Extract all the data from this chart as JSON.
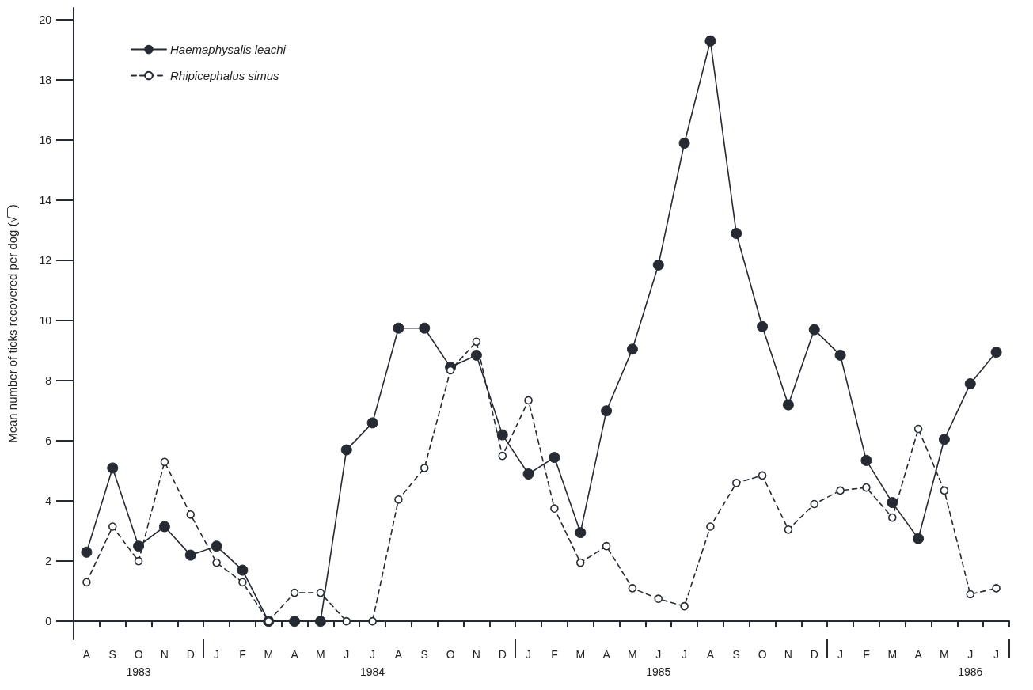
{
  "chart_data": {
    "type": "line",
    "ylabel": "Mean number of ticks recovered per dog (√‾‾)",
    "categories": [
      "A",
      "S",
      "O",
      "N",
      "D",
      "J",
      "F",
      "M",
      "A",
      "M",
      "J",
      "J",
      "A",
      "S",
      "O",
      "N",
      "D",
      "J",
      "F",
      "M",
      "A",
      "M",
      "J",
      "J",
      "A",
      "S",
      "O",
      "N",
      "D",
      "J",
      "F",
      "M",
      "A",
      "M",
      "J",
      "J"
    ],
    "series": [
      {
        "name": "Haemaphysalis leachi",
        "color": "#262b33",
        "line_style": "solid",
        "values": [
          2.3,
          5.1,
          2.5,
          3.15,
          2.2,
          2.5,
          1.7,
          0,
          0,
          0,
          5.7,
          6.6,
          9.75,
          9.75,
          8.45,
          8.85,
          6.2,
          4.9,
          5.45,
          2.95,
          7.0,
          9.05,
          11.85,
          15.9,
          19.3,
          12.9,
          9.8,
          7.2,
          9.7,
          8.85,
          5.35,
          3.95,
          2.75,
          6.05,
          7.9,
          8.95
        ]
      },
      {
        "name": "Rhipicephalus simus",
        "color": "#262b33",
        "line_style": "dashed",
        "values": [
          1.3,
          3.15,
          2.0,
          5.3,
          3.55,
          1.95,
          1.3,
          0,
          0.95,
          0.95,
          0,
          0,
          4.05,
          5.1,
          8.35,
          9.3,
          5.5,
          7.35,
          3.75,
          1.95,
          2.5,
          1.1,
          0.75,
          0.5,
          3.15,
          4.6,
          4.85,
          3.05,
          3.9,
          4.35,
          4.45,
          3.45,
          6.4,
          4.35,
          0.9,
          1.1
        ]
      }
    ],
    "annotations": [
      "1983",
      "1984",
      "1985",
      "1986"
    ],
    "ylim": [
      -0.6,
      20.4
    ],
    "yticks": [
      0,
      2,
      4,
      6,
      8,
      10,
      12,
      14,
      16,
      18,
      20
    ],
    "marker": "circle",
    "grid": false,
    "legend": "top left"
  }
}
